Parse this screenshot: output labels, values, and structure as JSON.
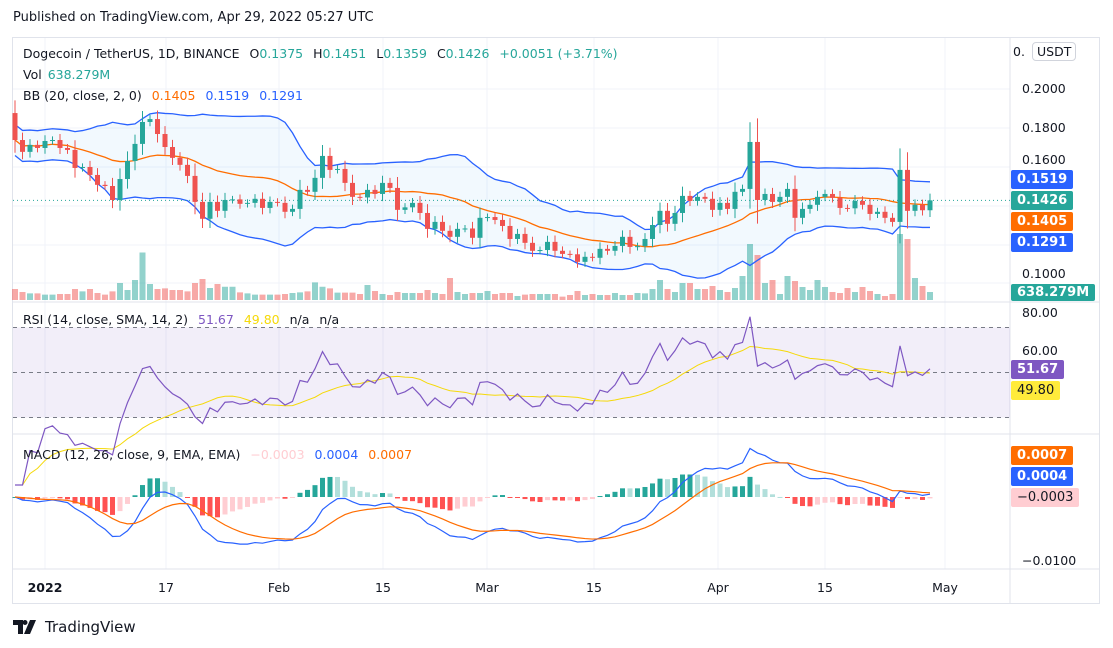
{
  "published": "Published on TradingView.com, Apr 29, 2022 05:27 UTC",
  "brand": "TradingView",
  "legend": {
    "symbol": "Dogecoin / TetherUS, 1D, BINANCE",
    "o_label": "O",
    "o": "0.1375",
    "h_label": "H",
    "h": "0.1451",
    "l_label": "L",
    "l": "0.1359",
    "c_label": "C",
    "c": "0.1426",
    "change": "+0.0051 (+3.71%)",
    "vol_label": "Vol",
    "vol": "638.279M",
    "bb_label": "BB (20, close, 2, 0)",
    "bb_basis": "0.1405",
    "bb_upper": "0.1519",
    "bb_lower": "0.1291",
    "rsi_label": "RSI (14, close, SMA, 14, 2)",
    "rsi": "51.67",
    "rsi_sma": "49.80",
    "na1": "n/a",
    "na2": "n/a",
    "macd_label": "MACD (12, 26, close, 9, EMA, EMA)",
    "macd_hist": "−0.0003",
    "macd": "0.0004",
    "macd_signal": "0.0007"
  },
  "price_axis": {
    "currency": "USDT",
    "ticks": [
      "0.2000",
      "0.1800",
      "0.1600",
      "0.1000"
    ],
    "top_tick": "0."
  },
  "rsi_axis": {
    "ticks": [
      "80.00",
      "60.00"
    ]
  },
  "macd_axis": {
    "ticks": [
      "−0.0100"
    ]
  },
  "tags": {
    "upper": "0.1519",
    "close": "0.1426",
    "basis": "0.1405",
    "lower": "0.1291",
    "vol": "638.279M",
    "rsi": "51.67",
    "rsi_sma": "49.80",
    "signal": "0.0007",
    "macd": "0.0004",
    "hist": "−0.0003"
  },
  "time_axis": [
    "2022",
    "17",
    "Feb",
    "15",
    "Mar",
    "15",
    "Apr",
    "15",
    "May"
  ],
  "colors": {
    "up": "#26a69a",
    "down": "#ef5350",
    "bb_basis": "#ff6d00",
    "bb_band": "#2962ff",
    "rsi": "#7e57c2",
    "rsi_sma": "#f5d90a",
    "macd": "#2962ff",
    "signal": "#ff6d00"
  },
  "chart_data": {
    "type": "candlestick",
    "symbol": "DOGE/USDT",
    "interval": "1D",
    "ylim": [
      0.095,
      0.21
    ],
    "first_open": 0.1876,
    "close": [
      0.1737,
      0.1676,
      0.1712,
      0.1696,
      0.1732,
      0.1737,
      0.1696,
      0.1686,
      0.1593,
      0.1598,
      0.1557,
      0.1506,
      0.15,
      0.1428,
      0.1536,
      0.1629,
      0.1717,
      0.183,
      0.1845,
      0.1768,
      0.1701,
      0.1645,
      0.1609,
      0.1552,
      0.1418,
      0.1331,
      0.1418,
      0.1372,
      0.1428,
      0.1431,
      0.1408,
      0.1413,
      0.1434,
      0.1387,
      0.1418,
      0.1413,
      0.1367,
      0.1382,
      0.148,
      0.147,
      0.1542,
      0.1655,
      0.1583,
      0.1588,
      0.1516,
      0.1444,
      0.1441,
      0.148,
      0.1459,
      0.1516,
      0.149,
      0.1377,
      0.139,
      0.1413,
      0.1361,
      0.1279,
      0.1315,
      0.1269,
      0.1238,
      0.1279,
      0.1281,
      0.1233,
      0.1336,
      0.134,
      0.1325,
      0.1294,
      0.1227,
      0.1253,
      0.1207,
      0.1166,
      0.117,
      0.1212,
      0.1166,
      0.115,
      0.1148,
      0.1109,
      0.1135,
      0.113,
      0.1176,
      0.1166,
      0.1191,
      0.1238,
      0.1186,
      0.119,
      0.1227,
      0.1299,
      0.1372,
      0.1305,
      0.1361,
      0.1449,
      0.1423,
      0.1444,
      0.1434,
      0.1377,
      0.1413,
      0.1382,
      0.147,
      0.1485,
      0.1727,
      0.1428,
      0.1459,
      0.1418,
      0.1444,
      0.1485,
      0.1336,
      0.1382,
      0.1403,
      0.1444,
      0.1459,
      0.1439,
      0.1387,
      0.1385,
      0.1423,
      0.1403,
      0.1356,
      0.1367,
      0.1336,
      0.1315,
      0.1583,
      0.1372,
      0.1403,
      0.1375,
      0.1426
    ],
    "volume_millions": [
      880,
      640,
      530,
      530,
      430,
      430,
      480,
      480,
      880,
      690,
      880,
      560,
      430,
      690,
      1360,
      800,
      1600,
      3800,
      1280,
      880,
      930,
      800,
      800,
      690,
      1360,
      1680,
      960,
      1280,
      1060,
      1060,
      610,
      530,
      430,
      430,
      430,
      430,
      480,
      560,
      610,
      690,
      1410,
      1060,
      930,
      590,
      590,
      590,
      480,
      1200,
      720,
      480,
      400,
      640,
      560,
      560,
      560,
      800,
      560,
      480,
      1760,
      640,
      480,
      560,
      560,
      720,
      480,
      560,
      560,
      320,
      430,
      480,
      480,
      480,
      480,
      270,
      400,
      720,
      400,
      480,
      400,
      400,
      560,
      400,
      400,
      560,
      530,
      880,
      1600,
      880,
      640,
      1360,
      1360,
      880,
      880,
      1120,
      800,
      640,
      960,
      1920,
      4480,
      3600,
      1360,
      1600,
      480,
      1920,
      1520,
      1040,
      800,
      1600,
      1040,
      640,
      560,
      960,
      640,
      1040,
      720,
      480,
      320,
      480,
      5280,
      4880,
      1760,
      1120,
      638.279
    ],
    "indicators": [
      "BB (20, close, 2, 0)",
      "Vol",
      "RSI (14, close, SMA, 14, 2)",
      "MACD (12, 26, close, 9, EMA, EMA)"
    ]
  }
}
